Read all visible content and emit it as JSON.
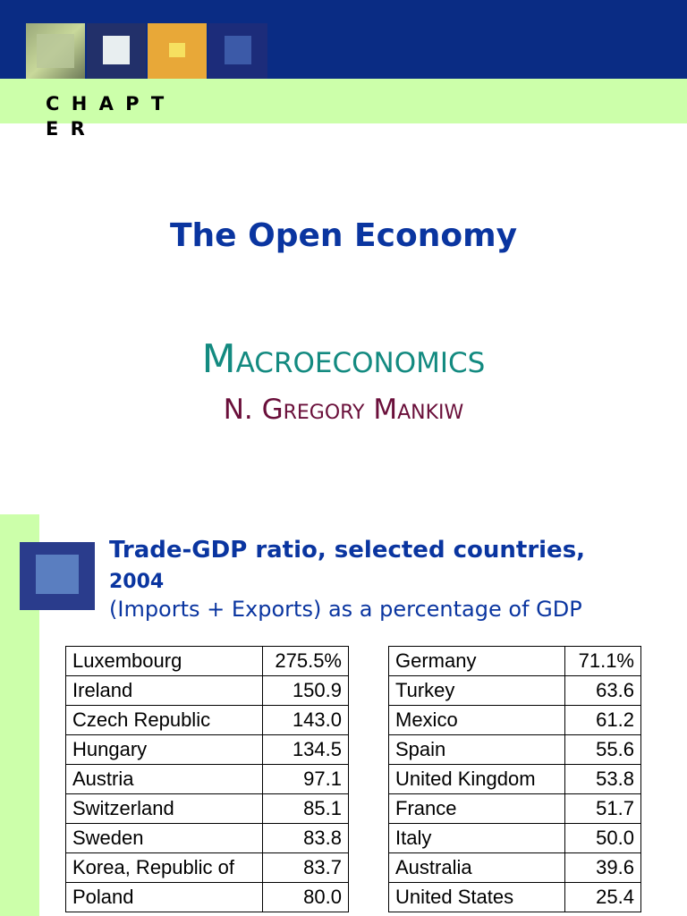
{
  "slide1": {
    "chapter": "C H A P T E R",
    "title": "The Open Economy",
    "book": "Macroeconomics",
    "author": "N. Gregory Mankiw"
  },
  "slide2": {
    "title": "Trade-GDP ratio, selected countries,",
    "year": "2004",
    "subtitle": "(Imports + Exports) as a percentage of GDP",
    "left_table": {
      "rows": [
        [
          "Luxembourg",
          "275.5%"
        ],
        [
          "Ireland",
          "150.9"
        ],
        [
          "Czech Republic",
          "143.0"
        ],
        [
          "Hungary",
          "134.5"
        ],
        [
          "Austria",
          "97.1"
        ],
        [
          "Switzerland",
          "85.1"
        ],
        [
          "Sweden",
          "83.8"
        ],
        [
          "Korea, Republic of",
          "83.7"
        ],
        [
          "Poland",
          "80.0"
        ]
      ]
    },
    "right_table": {
      "rows": [
        [
          "Germany",
          "71.1%"
        ],
        [
          "Turkey",
          "63.6"
        ],
        [
          "Mexico",
          "61.2"
        ],
        [
          "Spain",
          "55.6"
        ],
        [
          "United Kingdom",
          "53.8"
        ],
        [
          "France",
          "51.7"
        ],
        [
          "Italy",
          "50.0"
        ],
        [
          "Australia",
          "39.6"
        ],
        [
          "United States",
          "25.4"
        ]
      ]
    }
  }
}
